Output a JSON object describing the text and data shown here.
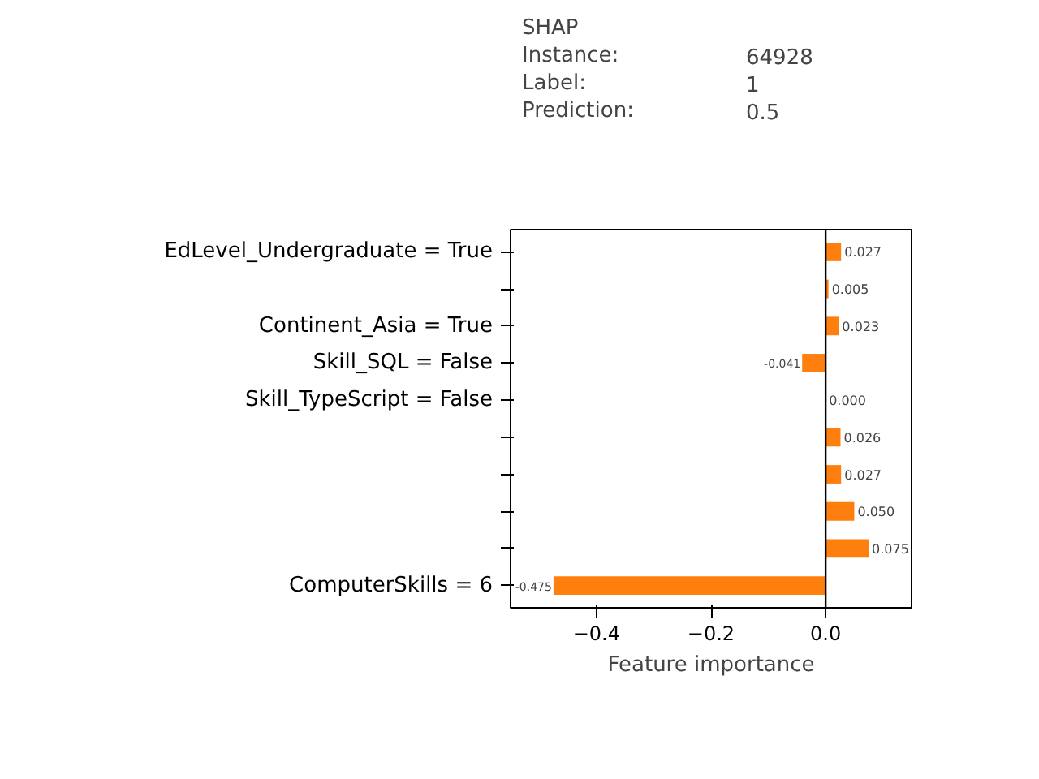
{
  "chart_data": {
    "type": "bar",
    "orientation": "horizontal",
    "title": "SHAP",
    "annotations": [
      "Instance:",
      "64928",
      "Label:",
      "1",
      "Prediction:",
      "0.5"
    ],
    "xlabel": "Feature importance",
    "categories": [
      "EdLevel_Undergraduate = True",
      null,
      "Continent_Asia = True",
      "Skill_SQL = False",
      "Skill_TypeScript = False",
      null,
      null,
      null,
      null,
      "ComputerSkills = 6"
    ],
    "values": [
      0.027,
      0.005,
      0.023,
      -0.041,
      0.0,
      0.026,
      0.027,
      0.05,
      0.075,
      -0.475
    ],
    "value_labels": [
      "0.027",
      "0.005",
      "0.023",
      "-0.041",
      "0.000",
      "0.026",
      "0.027",
      "0.050",
      "0.075",
      "-0.475"
    ],
    "color": "#ff7f0e",
    "xlim": [
      -0.55,
      0.15
    ],
    "xticks": [
      -0.4,
      -0.2,
      {
        "value": 0,
        "label": "0.0"
      }
    ],
    "ref_lines": [
      {
        "axis": "x",
        "value": 0,
        "color": "#000000"
      }
    ],
    "grid": false
  }
}
